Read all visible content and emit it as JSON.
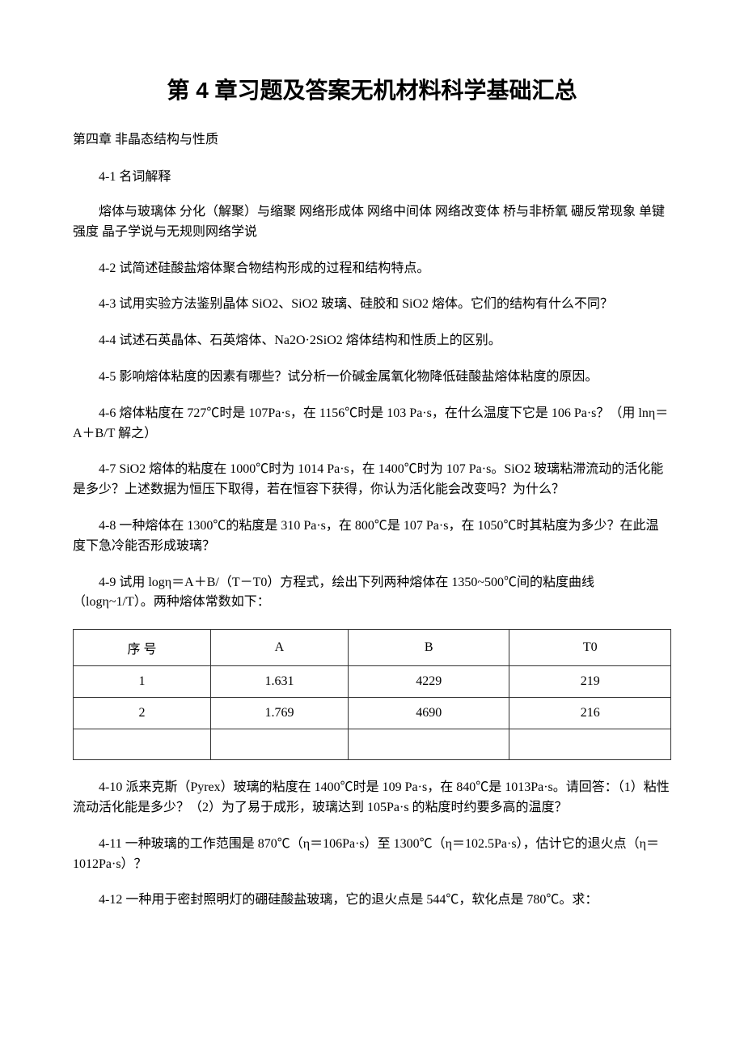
{
  "title": "第 4 章习题及答案无机材料科学基础汇总",
  "subtitle": "第四章 非晶态结构与性质",
  "section_4_1_head": "4-1 名词解释",
  "section_4_1_body": "熔体与玻璃体 分化（解聚）与缩聚 网络形成体 网络中间体 网络改变体 桥与非桥氧 硼反常现象 单键强度 晶子学说与无规则网络学说",
  "q_4_2": "4-2 试简述硅酸盐熔体聚合物结构形成的过程和结构特点。",
  "q_4_3": "4-3 试用实验方法鉴别晶体 SiO2、SiO2 玻璃、硅胶和 SiO2 熔体。它们的结构有什么不同？",
  "q_4_4": "4-4 试述石英晶体、石英熔体、Na2O·2SiO2 熔体结构和性质上的区别。",
  "q_4_5": "4-5 影响熔体粘度的因素有哪些？试分析一价碱金属氧化物降低硅酸盐熔体粘度的原因。",
  "q_4_6": "4-6 熔体粘度在 727℃时是 107Pa·s，在 1156℃时是 103 Pa·s，在什么温度下它是 106 Pa·s？（用 lnη＝A＋B/T 解之）",
  "q_4_7": "4-7 SiO2 熔体的粘度在 1000℃时为 1014 Pa·s，在 1400℃时为 107 Pa·s。SiO2 玻璃粘滞流动的活化能是多少？上述数据为恒压下取得，若在恒容下获得，你认为活化能会改变吗？为什么？",
  "q_4_8": "4-8 一种熔体在 1300℃的粘度是 310 Pa·s，在 800℃是 107 Pa·s，在 1050℃时其粘度为多少？在此温度下急冷能否形成玻璃？",
  "q_4_9": "4-9 试用 logη＝A＋B/（T－T0）方程式，绘出下列两种熔体在 1350~500℃间的粘度曲线（logη~1/T）。两种熔体常数如下：",
  "table": {
    "columns": [
      "序  号",
      "A",
      "B",
      "T0"
    ],
    "rows": [
      [
        "1",
        "1.631",
        "4229",
        "219"
      ],
      [
        "2",
        "1.769",
        "4690",
        "216"
      ],
      [
        "",
        "",
        "",
        ""
      ]
    ],
    "border_color": "#333333",
    "cell_padding": 10,
    "text_align": "center"
  },
  "q_4_10": "4-10 派来克斯（Pyrex）玻璃的粘度在 1400℃时是 109 Pa·s，在 840℃是 1013Pa·s。请回答：（1）粘性流动活化能是多少？（2）为了易于成形，玻璃达到 105Pa·s 的粘度时约要多高的温度？",
  "q_4_11": "4-11 一种玻璃的工作范围是 870℃（η＝106Pa·s）至 1300℃（η＝102.5Pa·s），估计它的退火点（η＝1012Pa·s）？",
  "q_4_12": "4-12 一种用于密封照明灯的硼硅酸盐玻璃，它的退火点是 544℃，软化点是 780℃。求：",
  "colors": {
    "background": "#ffffff",
    "text": "#000000",
    "table_border": "#333333"
  },
  "typography": {
    "body_font": "SimSun",
    "title_font": "SimHei",
    "title_fontsize": 28,
    "body_fontsize": 16,
    "line_height": 1.55
  }
}
